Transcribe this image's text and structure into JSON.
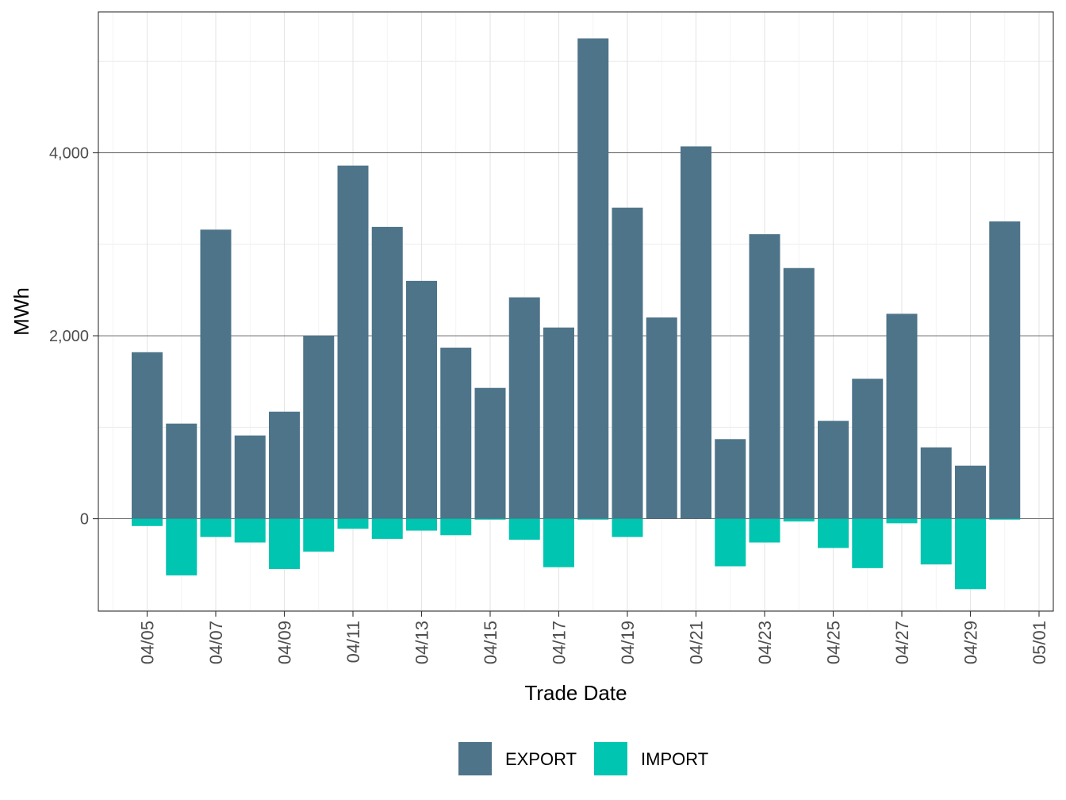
{
  "chart_data": {
    "type": "bar",
    "stacked": true,
    "xlabel": "Trade Date",
    "ylabel": "MWh",
    "ylim": [
      -1010,
      5540
    ],
    "y_ticks": [
      0,
      2000,
      4000
    ],
    "y_tick_labels": [
      "0",
      "2,000",
      "4,000"
    ],
    "x_tick_labels": [
      "04/05",
      "04/07",
      "04/09",
      "04/11",
      "04/13",
      "04/15",
      "04/17",
      "04/19",
      "04/21",
      "04/23",
      "04/25",
      "04/27",
      "04/29",
      "05/01"
    ],
    "categories": [
      "04/05",
      "04/06",
      "04/07",
      "04/08",
      "04/09",
      "04/10",
      "04/11",
      "04/12",
      "04/13",
      "04/14",
      "04/15",
      "04/16",
      "04/17",
      "04/18",
      "04/19",
      "04/20",
      "04/21",
      "04/22",
      "04/23",
      "04/24",
      "04/25",
      "04/26",
      "04/27",
      "04/28",
      "04/29",
      "04/30"
    ],
    "series": [
      {
        "name": "EXPORT",
        "color": "#4e7489",
        "values": [
          1820,
          1040,
          3160,
          910,
          1170,
          2000,
          3860,
          3190,
          2600,
          1870,
          1430,
          2420,
          2090,
          5250,
          3400,
          2200,
          4070,
          870,
          3110,
          2740,
          1070,
          1530,
          2240,
          780,
          580,
          3250
        ]
      },
      {
        "name": "IMPORT",
        "color": "#00c5b0",
        "values": [
          -80,
          -620,
          -200,
          -260,
          -550,
          -360,
          -110,
          -220,
          -130,
          -180,
          -10,
          -230,
          -530,
          -10,
          -200,
          0,
          0,
          -520,
          -260,
          -30,
          -320,
          -540,
          -50,
          -500,
          -770,
          -10
        ]
      }
    ],
    "grid": true,
    "legend_position": "bottom"
  }
}
